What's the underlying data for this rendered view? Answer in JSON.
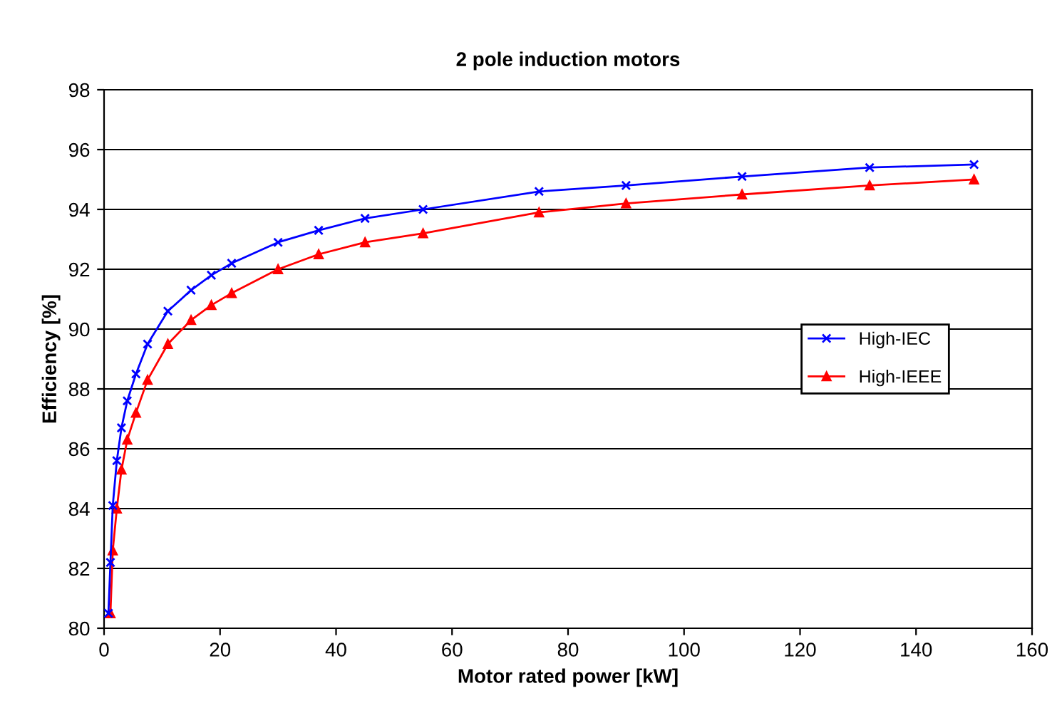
{
  "chart_data": {
    "type": "line",
    "title": "2 pole induction motors",
    "xlabel": "Motor rated power [kW]",
    "ylabel": "Efficiency [%]",
    "x": [
      0.75,
      1.1,
      1.5,
      2.2,
      3,
      4,
      5.5,
      7.5,
      11,
      15,
      18.5,
      22,
      30,
      37,
      45,
      55,
      75,
      90,
      110,
      132,
      150
    ],
    "series": [
      {
        "name": "High-IEC",
        "color": "#0000ff",
        "marker": "cross",
        "values": [
          80.5,
          82.2,
          84.1,
          85.6,
          86.7,
          87.6,
          88.5,
          89.5,
          90.6,
          91.3,
          91.8,
          92.2,
          92.9,
          93.3,
          93.7,
          94.0,
          94.6,
          94.8,
          95.1,
          95.4,
          95.5
        ]
      },
      {
        "name": "High-IEEE",
        "color": "#ff0000",
        "marker": "triangle",
        "values": [
          null,
          80.5,
          82.6,
          84.0,
          85.3,
          86.3,
          87.2,
          88.3,
          89.5,
          90.3,
          90.8,
          91.2,
          92.0,
          92.5,
          92.9,
          93.2,
          93.9,
          94.2,
          94.5,
          94.8,
          95.0
        ]
      }
    ],
    "xlim": [
      0,
      160
    ],
    "xticks": [
      0,
      20,
      40,
      60,
      80,
      100,
      120,
      140,
      160
    ],
    "ylim": [
      80,
      98
    ],
    "yticks": [
      80,
      82,
      84,
      86,
      88,
      90,
      92,
      94,
      96,
      98
    ],
    "grid": "y",
    "legend": "right",
    "line_style": "solid"
  }
}
